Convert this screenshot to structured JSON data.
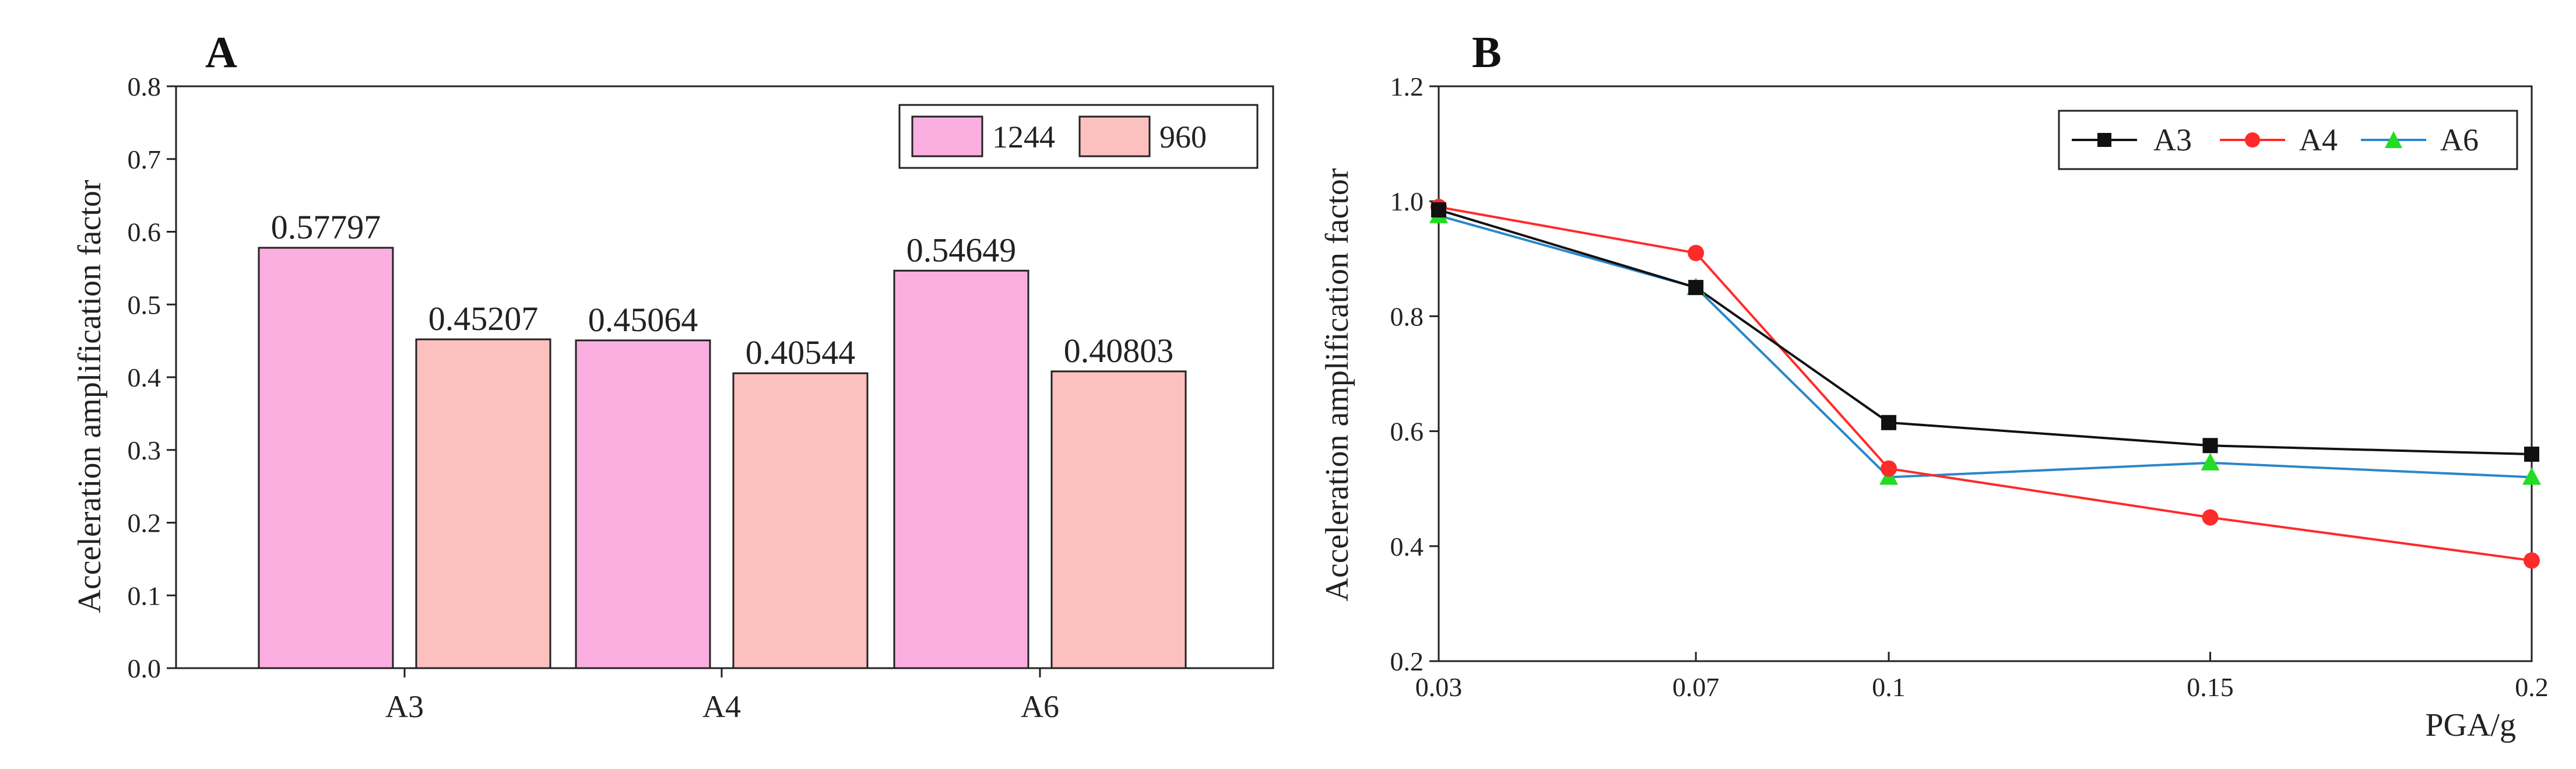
{
  "chart_data": [
    {
      "panel_label": "A",
      "type": "bar",
      "ylabel": "Acceleration amplification factor",
      "xlabel": "",
      "ylim": [
        0,
        0.8
      ],
      "yticks": [
        "0.0",
        "0.1",
        "0.2",
        "0.3",
        "0.4",
        "0.5",
        "0.6",
        "0.7",
        "0.8"
      ],
      "categories": [
        "A3",
        "A4",
        "A6"
      ],
      "series": [
        {
          "name": "1244",
          "color": "#fbaee0",
          "values": [
            0.57797,
            0.45064,
            0.54649
          ],
          "labels": [
            "0.57797",
            "0.45064",
            "0.54649"
          ]
        },
        {
          "name": "960",
          "color": "#fcc0bf",
          "values": [
            0.45207,
            0.40544,
            0.40803
          ],
          "labels": [
            "0.45207",
            "0.40544",
            "0.40803"
          ]
        }
      ],
      "legend_position": "top-right"
    },
    {
      "panel_label": "B",
      "type": "line",
      "ylabel": "Acceleration amplification factor",
      "xlabel": "PGA/g",
      "ylim": [
        0.2,
        1.2
      ],
      "yticks": [
        "0.2",
        "0.4",
        "0.6",
        "0.8",
        "1.0",
        "1.2"
      ],
      "x": [
        "0.03",
        "0.07",
        "0.1",
        "0.15",
        "0.2"
      ],
      "series": [
        {
          "name": "A3",
          "color": "#111111",
          "marker": "square",
          "values": [
            0.985,
            0.85,
            0.615,
            0.575,
            0.56
          ]
        },
        {
          "name": "A4",
          "color": "#ff2a2a",
          "marker": "circle",
          "values": [
            0.99,
            0.91,
            0.535,
            0.45,
            0.375
          ]
        },
        {
          "name": "A6",
          "color": "#2b86c8",
          "marker": "triangle",
          "values": [
            0.975,
            0.85,
            0.52,
            0.545,
            0.52
          ]
        }
      ],
      "legend_position": "top-right"
    }
  ]
}
